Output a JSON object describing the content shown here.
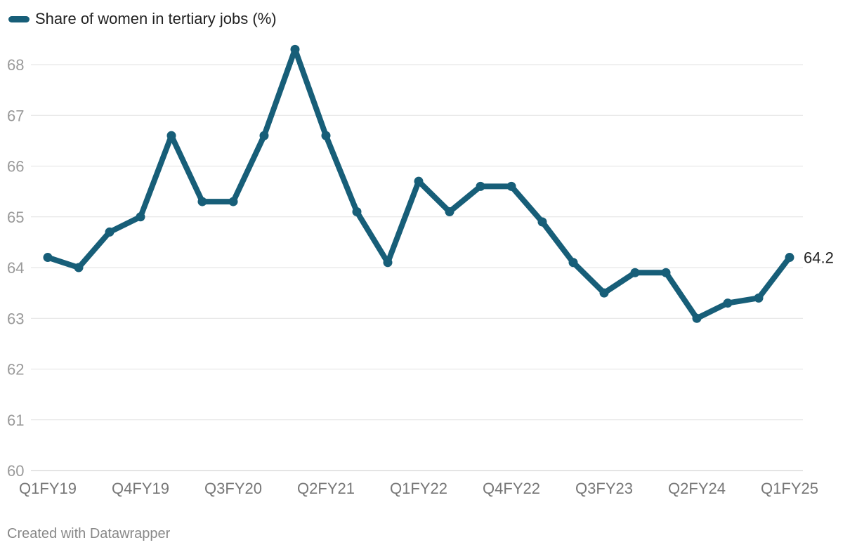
{
  "chart_data": {
    "type": "line",
    "title": "",
    "xlabel": "",
    "ylabel": "",
    "ylim": [
      60,
      68
    ],
    "yticks": [
      60,
      61,
      62,
      63,
      64,
      65,
      66,
      67,
      68
    ],
    "categories": [
      "Q1FY19",
      "Q2FY19",
      "Q3FY19",
      "Q4FY19",
      "Q1FY20",
      "Q2FY20",
      "Q3FY20",
      "Q4FY20",
      "Q1FY21",
      "Q2FY21",
      "Q3FY21",
      "Q4FY21",
      "Q1FY22",
      "Q2FY22",
      "Q3FY22",
      "Q4FY22",
      "Q1FY23",
      "Q2FY23",
      "Q3FY23",
      "Q4FY23",
      "Q1FY24",
      "Q2FY24",
      "Q3FY24",
      "Q4FY24",
      "Q1FY25"
    ],
    "xtick_labels": [
      "Q1FY19",
      "Q4FY19",
      "Q3FY20",
      "Q2FY21",
      "Q1FY22",
      "Q4FY22",
      "Q3FY23",
      "Q2FY24",
      "Q1FY25"
    ],
    "series": [
      {
        "name": "Share of women in tertiary jobs (%)",
        "color": "#175e78",
        "values": [
          64.2,
          64.0,
          64.7,
          65.0,
          66.6,
          65.3,
          65.3,
          66.6,
          68.3,
          66.6,
          65.1,
          64.1,
          65.7,
          65.1,
          65.6,
          65.6,
          64.9,
          64.1,
          63.5,
          63.9,
          63.9,
          63.0,
          63.3,
          63.4,
          64.2
        ]
      }
    ],
    "end_label": "64.2",
    "grid": true,
    "legend_position": "top-left"
  },
  "legend": {
    "label": "Share of women in tertiary jobs (%)"
  },
  "footer": {
    "credit": "Created with Datawrapper"
  }
}
